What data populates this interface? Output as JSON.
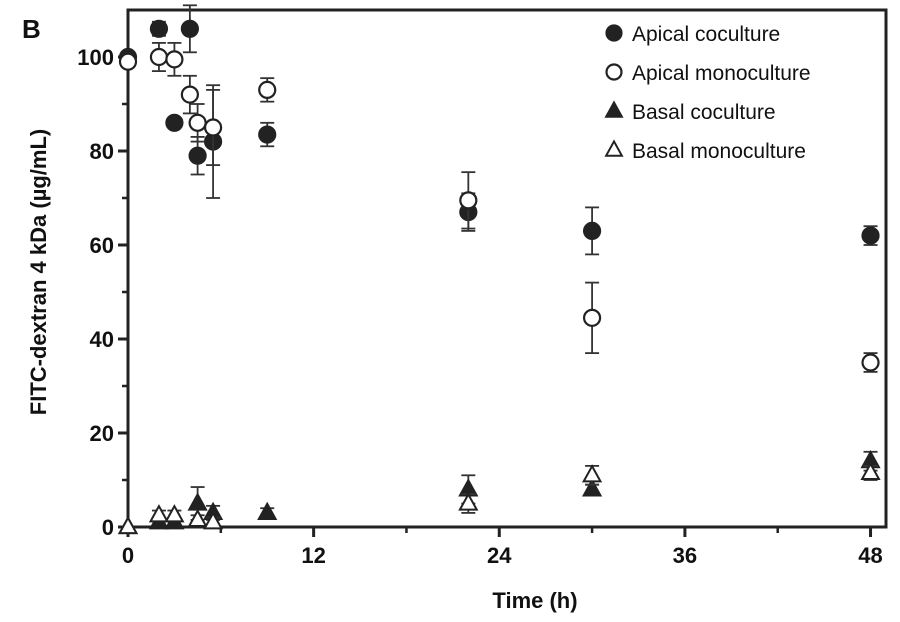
{
  "panel_label": "B",
  "chart_data": {
    "type": "scatter",
    "xlabel": "Time (h)",
    "ylabel": "FITC-dextran 4 kDa (µg/mL)",
    "xlim": [
      0,
      49
    ],
    "ylim": [
      0,
      110
    ],
    "xticks": [
      0,
      12,
      24,
      36,
      48
    ],
    "yticks": [
      0,
      20,
      40,
      60,
      80,
      100
    ],
    "grid": false,
    "legend_position": "top-right",
    "series": [
      {
        "name": "Apical coculture",
        "marker": "circle-filled",
        "points": [
          {
            "x": 0,
            "y": 100,
            "err": 0
          },
          {
            "x": 2,
            "y": 106,
            "err": 1.5
          },
          {
            "x": 3,
            "y": 86,
            "err": 1
          },
          {
            "x": 4,
            "y": 106,
            "err": 5
          },
          {
            "x": 4.5,
            "y": 79,
            "err": 4
          },
          {
            "x": 5.5,
            "y": 82,
            "err": 12
          },
          {
            "x": 9,
            "y": 83.5,
            "err": 2.5
          },
          {
            "x": 22,
            "y": 67,
            "err": 4
          },
          {
            "x": 30,
            "y": 63,
            "err": 5
          },
          {
            "x": 48,
            "y": 62,
            "err": 2
          }
        ]
      },
      {
        "name": "Apical monoculture",
        "marker": "circle-open",
        "points": [
          {
            "x": 0,
            "y": 99,
            "err": 0
          },
          {
            "x": 2,
            "y": 100,
            "err": 3
          },
          {
            "x": 3,
            "y": 99.5,
            "err": 3.5
          },
          {
            "x": 4,
            "y": 92,
            "err": 4
          },
          {
            "x": 4.5,
            "y": 86,
            "err": 4
          },
          {
            "x": 5.5,
            "y": 85,
            "err": 8
          },
          {
            "x": 9,
            "y": 93,
            "err": 2.5
          },
          {
            "x": 22,
            "y": 69.5,
            "err": 6
          },
          {
            "x": 30,
            "y": 44.5,
            "err": 7.5
          },
          {
            "x": 48,
            "y": 35,
            "err": 2
          }
        ]
      },
      {
        "name": "Basal coculture",
        "marker": "triangle-filled",
        "points": [
          {
            "x": 0,
            "y": 0,
            "err": 0
          },
          {
            "x": 2,
            "y": 1,
            "err": 1
          },
          {
            "x": 3,
            "y": 1,
            "err": 0.8
          },
          {
            "x": 4.5,
            "y": 5,
            "err": 3.5
          },
          {
            "x": 5.5,
            "y": 3,
            "err": 1.5
          },
          {
            "x": 9,
            "y": 3,
            "err": 1
          },
          {
            "x": 22,
            "y": 8,
            "err": 3
          },
          {
            "x": 30,
            "y": 8,
            "err": 1
          },
          {
            "x": 48,
            "y": 14,
            "err": 2
          }
        ]
      },
      {
        "name": "Basal monoculture",
        "marker": "triangle-open",
        "points": [
          {
            "x": 0,
            "y": 0,
            "err": 0
          },
          {
            "x": 2,
            "y": 2.5,
            "err": 1
          },
          {
            "x": 3,
            "y": 2.5,
            "err": 1
          },
          {
            "x": 4.5,
            "y": 1.5,
            "err": 1
          },
          {
            "x": 5.5,
            "y": 1,
            "err": 1
          },
          {
            "x": 22,
            "y": 5,
            "err": 2
          },
          {
            "x": 30,
            "y": 11,
            "err": 2
          },
          {
            "x": 48,
            "y": 11.5,
            "err": 1.5
          }
        ]
      }
    ]
  }
}
